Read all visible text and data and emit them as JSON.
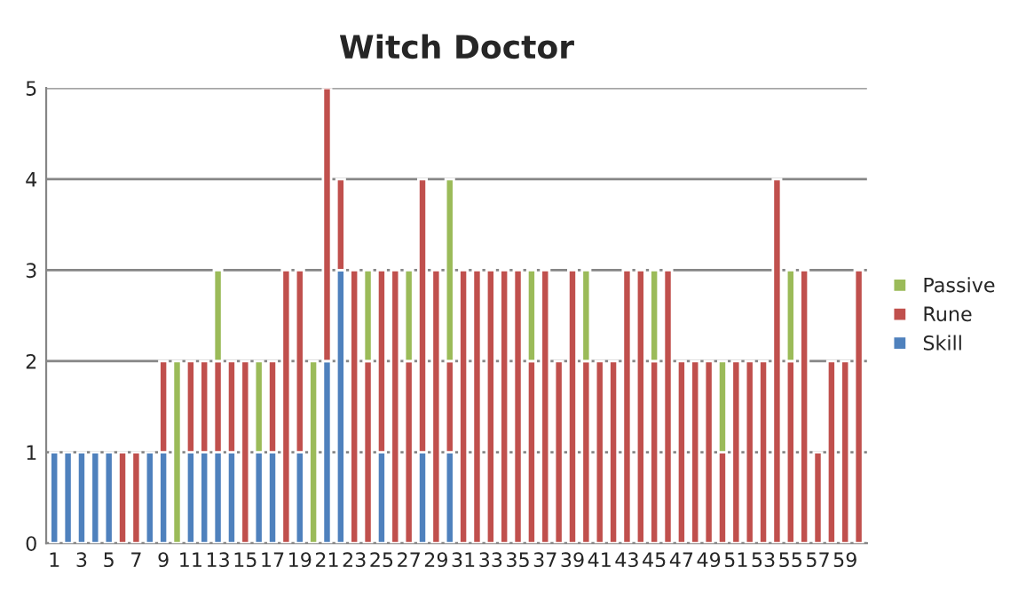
{
  "chart_data": {
    "type": "bar",
    "title": "Witch Doctor",
    "stacked": true,
    "categories": [
      "1",
      null,
      "3",
      null,
      "5",
      null,
      "7",
      null,
      "9",
      null,
      "11",
      null,
      "13",
      null,
      "15",
      null,
      "17",
      null,
      "19",
      null,
      "21",
      null,
      "23",
      null,
      "25",
      null,
      "27",
      null,
      "29",
      null,
      "31",
      null,
      "33",
      null,
      "35",
      null,
      "37",
      null,
      "39",
      null,
      "41",
      null,
      "43",
      null,
      "45",
      null,
      "47",
      null,
      "49",
      null,
      "51",
      null,
      "53",
      null,
      "55",
      null,
      "57",
      null,
      "59",
      null
    ],
    "series": [
      {
        "name": "Skill",
        "color": "#4f81bd",
        "values": [
          1,
          1,
          1,
          1,
          1,
          null,
          null,
          1,
          1,
          null,
          1,
          1,
          1,
          1,
          null,
          1,
          1,
          null,
          1,
          null,
          2,
          3,
          null,
          null,
          1,
          null,
          null,
          1,
          null,
          1,
          null,
          null,
          null,
          null,
          null,
          null,
          null,
          null,
          null,
          null,
          null,
          null,
          null,
          null,
          null,
          null,
          null,
          null,
          null,
          null,
          null,
          null,
          null,
          null,
          null,
          null,
          null,
          null,
          null,
          null
        ]
      },
      {
        "name": "Rune",
        "color": "#c0504d",
        "values": [
          null,
          null,
          null,
          null,
          null,
          1,
          1,
          null,
          1,
          null,
          1,
          1,
          1,
          1,
          2,
          null,
          1,
          3,
          2,
          null,
          3,
          1,
          3,
          2,
          2,
          3,
          2,
          3,
          3,
          1,
          3,
          3,
          3,
          3,
          3,
          2,
          3,
          2,
          3,
          2,
          2,
          2,
          3,
          3,
          2,
          3,
          2,
          2,
          2,
          1,
          2,
          2,
          2,
          4,
          2,
          3,
          1,
          2,
          2,
          3
        ]
      },
      {
        "name": "Passive",
        "color": "#9bbb59",
        "values": [
          null,
          null,
          null,
          null,
          null,
          null,
          null,
          null,
          null,
          2,
          null,
          null,
          1,
          null,
          null,
          1,
          null,
          null,
          null,
          2,
          null,
          null,
          null,
          1,
          null,
          null,
          1,
          null,
          null,
          2,
          null,
          null,
          null,
          null,
          null,
          1,
          null,
          null,
          null,
          1,
          null,
          null,
          null,
          null,
          1,
          null,
          null,
          null,
          null,
          1,
          null,
          null,
          null,
          null,
          1,
          null,
          null,
          null,
          null,
          null
        ]
      }
    ],
    "ylim": [
      0,
      5
    ],
    "yticks": [
      0,
      1,
      2,
      3,
      4,
      5
    ],
    "grid": "y",
    "legend": "right"
  }
}
